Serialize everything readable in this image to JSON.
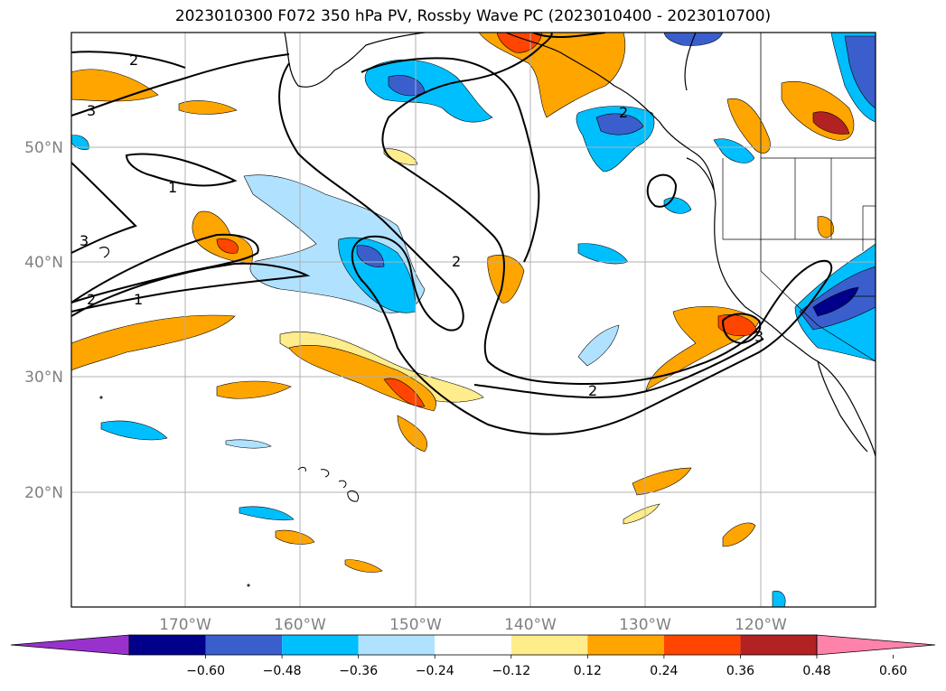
{
  "title": "2023010300 F072 350 hPa PV, Rossby Wave PC (2023010400 - 2023010700)",
  "lat_labels": [
    "50°N",
    "40°N",
    "30°N",
    "20°N"
  ],
  "lon_labels": [
    "170°W",
    "160°W",
    "150°W",
    "140°W",
    "130°W",
    "120°W"
  ],
  "contour_labels": [
    "2",
    "3",
    "1",
    "3",
    "2",
    "1",
    "2",
    "2",
    "2",
    "3"
  ],
  "colorbar": {
    "ticks": [
      "−0.60",
      "−0.48",
      "−0.36",
      "−0.24",
      "−0.12",
      "0.12",
      "0.24",
      "0.36",
      "0.48",
      "0.60"
    ],
    "colors": [
      "#9932cc",
      "#00008b",
      "#3a5fcd",
      "#00bfff",
      "#b0e2ff",
      "#ffffff",
      "#ffec8b",
      "#ffa500",
      "#ff4500",
      "#b22222",
      "#ff82ab"
    ]
  }
}
